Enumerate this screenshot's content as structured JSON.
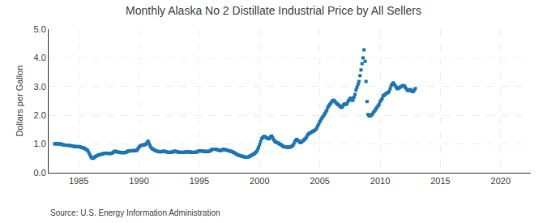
{
  "chart_data": {
    "type": "scatter",
    "title": "Monthly Alaska No 2 Distillate Industrial Price by All Sellers",
    "ylabel": "Dollars per Gallon",
    "annotations": [
      "Source: U.S. Energy Information Administration"
    ],
    "marker": "square",
    "grid": true,
    "xlim": [
      1982.5,
      2022.5
    ],
    "xticks": [
      1985,
      1990,
      1995,
      2000,
      2005,
      2010,
      2015,
      2020
    ],
    "ylim": [
      0.0,
      5.0
    ],
    "yticks": [
      {
        "value": 0.0,
        "label": "0.0"
      },
      {
        "value": 1.0,
        "label": "1.0"
      },
      {
        "value": 2.0,
        "label": "2.0"
      },
      {
        "value": 3.0,
        "label": "3.0"
      },
      {
        "value": 4.0,
        "label": "4.0"
      },
      {
        "value": 5.0,
        "label": "5.0"
      }
    ],
    "x": [
      1983.0,
      1983.083,
      1983.167,
      1983.25,
      1983.333,
      1983.417,
      1983.5,
      1983.583,
      1983.667,
      1983.75,
      1983.833,
      1983.917,
      1984.0,
      1984.083,
      1984.167,
      1984.25,
      1984.333,
      1984.417,
      1984.5,
      1984.583,
      1984.667,
      1984.75,
      1984.833,
      1984.917,
      1985.0,
      1985.083,
      1985.167,
      1985.25,
      1985.333,
      1985.417,
      1985.5,
      1985.583,
      1985.667,
      1985.75,
      1985.833,
      1985.917,
      1986.0,
      1986.083,
      1986.167,
      1986.25,
      1986.333,
      1986.417,
      1986.5,
      1986.583,
      1986.667,
      1986.75,
      1986.833,
      1986.917,
      1987.0,
      1987.083,
      1987.167,
      1987.25,
      1987.333,
      1987.417,
      1987.5,
      1987.583,
      1987.667,
      1987.75,
      1987.833,
      1987.917,
      1988.0,
      1988.083,
      1988.167,
      1988.25,
      1988.333,
      1988.417,
      1988.5,
      1988.583,
      1988.667,
      1988.75,
      1988.833,
      1988.917,
      1989.0,
      1989.083,
      1989.167,
      1989.25,
      1989.333,
      1989.417,
      1989.5,
      1989.583,
      1989.667,
      1989.75,
      1989.833,
      1989.917,
      1990.0,
      1990.083,
      1990.167,
      1990.25,
      1990.333,
      1990.417,
      1990.5,
      1990.583,
      1990.667,
      1990.75,
      1990.833,
      1990.917,
      1991.0,
      1991.083,
      1991.167,
      1991.25,
      1991.333,
      1991.417,
      1991.5,
      1991.583,
      1991.667,
      1991.75,
      1991.833,
      1991.917,
      1992.0,
      1992.083,
      1992.167,
      1992.25,
      1992.333,
      1992.417,
      1992.5,
      1992.583,
      1992.667,
      1992.75,
      1992.833,
      1992.917,
      1993.0,
      1993.083,
      1993.167,
      1993.25,
      1993.333,
      1993.417,
      1993.5,
      1993.583,
      1993.667,
      1993.75,
      1993.833,
      1993.917,
      1994.0,
      1994.083,
      1994.167,
      1994.25,
      1994.333,
      1994.417,
      1994.5,
      1994.583,
      1994.667,
      1994.75,
      1994.833,
      1994.917,
      1995.0,
      1995.083,
      1995.167,
      1995.25,
      1995.333,
      1995.417,
      1995.5,
      1995.583,
      1995.667,
      1995.75,
      1995.833,
      1995.917,
      1996.0,
      1996.083,
      1996.167,
      1996.25,
      1996.333,
      1996.417,
      1996.5,
      1996.583,
      1996.667,
      1996.75,
      1996.833,
      1996.917,
      1997.0,
      1997.083,
      1997.167,
      1997.25,
      1997.333,
      1997.417,
      1997.5,
      1997.583,
      1997.667,
      1997.75,
      1997.833,
      1997.917,
      1998.0,
      1998.083,
      1998.167,
      1998.25,
      1998.333,
      1998.417,
      1998.5,
      1998.583,
      1998.667,
      1998.75,
      1998.833,
      1998.917,
      1999.0,
      1999.083,
      1999.167,
      1999.25,
      1999.333,
      1999.417,
      1999.5,
      1999.583,
      1999.667,
      1999.75,
      1999.833,
      1999.917,
      2000.0,
      2000.083,
      2000.167,
      2000.25,
      2000.333,
      2000.417,
      2000.5,
      2000.583,
      2000.667,
      2000.75,
      2000.833,
      2000.917,
      2001.0,
      2001.083,
      2001.167,
      2001.25,
      2001.333,
      2001.417,
      2001.5,
      2001.583,
      2001.667,
      2001.75,
      2001.833,
      2001.917,
      2002.0,
      2002.083,
      2002.167,
      2002.25,
      2002.333,
      2002.417,
      2002.5,
      2002.583,
      2002.667,
      2002.75,
      2002.833,
      2002.917,
      2003.0,
      2003.083,
      2003.167,
      2003.25,
      2003.333,
      2003.417,
      2003.5,
      2003.583,
      2003.667,
      2003.75,
      2003.833,
      2003.917,
      2004.0,
      2004.083,
      2004.167,
      2004.25,
      2004.333,
      2004.417,
      2004.5,
      2004.583,
      2004.667,
      2004.75,
      2004.833,
      2004.917,
      2005.0,
      2005.083,
      2005.167,
      2005.25,
      2005.333,
      2005.417,
      2005.5,
      2005.583,
      2005.667,
      2005.75,
      2005.833,
      2005.917,
      2006.0,
      2006.083,
      2006.167,
      2006.25,
      2006.333,
      2006.417,
      2006.5,
      2006.583,
      2006.667,
      2006.75,
      2006.833,
      2006.917,
      2007.0,
      2007.083,
      2007.167,
      2007.25,
      2007.333,
      2007.417,
      2007.5,
      2007.583,
      2007.667,
      2007.75,
      2007.833,
      2007.917,
      2008.0,
      2008.083,
      2008.167,
      2008.25,
      2008.333,
      2008.417,
      2008.5,
      2008.583,
      2008.667,
      2008.75,
      2008.833,
      2008.917,
      2009.0,
      2009.083,
      2009.167,
      2009.25,
      2009.333,
      2009.417,
      2009.5,
      2009.583,
      2009.667,
      2009.75,
      2009.833,
      2009.917,
      2010.0,
      2010.083,
      2010.167,
      2010.25,
      2010.333,
      2010.417,
      2010.5,
      2010.583,
      2010.667,
      2010.75,
      2010.833,
      2010.917,
      2011.0,
      2011.083,
      2011.167,
      2011.25,
      2011.333,
      2011.417,
      2011.5,
      2011.583,
      2011.667,
      2011.75,
      2011.833,
      2011.917,
      2012.0,
      2012.083,
      2012.167,
      2012.25,
      2012.333,
      2012.417,
      2012.5,
      2012.583,
      2012.667,
      2012.75,
      2012.833,
      2012.917
    ],
    "values": [
      1.0,
      1.02,
      1.01,
      1.0,
      1.0,
      1.01,
      1.0,
      0.99,
      0.98,
      0.97,
      0.96,
      0.96,
      0.96,
      0.96,
      0.95,
      0.95,
      0.94,
      0.93,
      0.93,
      0.92,
      0.91,
      0.91,
      0.91,
      0.91,
      0.91,
      0.9,
      0.89,
      0.88,
      0.87,
      0.86,
      0.84,
      0.82,
      0.8,
      0.77,
      0.7,
      0.63,
      0.56,
      0.52,
      0.5,
      0.52,
      0.55,
      0.57,
      0.59,
      0.61,
      0.62,
      0.63,
      0.64,
      0.65,
      0.66,
      0.67,
      0.68,
      0.68,
      0.68,
      0.67,
      0.67,
      0.67,
      0.67,
      0.68,
      0.7,
      0.73,
      0.75,
      0.74,
      0.73,
      0.72,
      0.71,
      0.71,
      0.7,
      0.7,
      0.7,
      0.7,
      0.7,
      0.71,
      0.73,
      0.75,
      0.76,
      0.76,
      0.76,
      0.77,
      0.77,
      0.77,
      0.77,
      0.77,
      0.79,
      0.84,
      0.89,
      0.93,
      0.95,
      0.96,
      0.97,
      0.97,
      0.98,
      1.0,
      1.05,
      1.1,
      1.02,
      0.94,
      0.88,
      0.84,
      0.82,
      0.8,
      0.78,
      0.76,
      0.75,
      0.74,
      0.73,
      0.73,
      0.73,
      0.74,
      0.75,
      0.75,
      0.74,
      0.73,
      0.72,
      0.71,
      0.71,
      0.71,
      0.71,
      0.72,
      0.73,
      0.75,
      0.75,
      0.74,
      0.73,
      0.72,
      0.71,
      0.71,
      0.71,
      0.71,
      0.71,
      0.71,
      0.72,
      0.73,
      0.73,
      0.72,
      0.72,
      0.72,
      0.71,
      0.71,
      0.71,
      0.71,
      0.71,
      0.72,
      0.73,
      0.75,
      0.76,
      0.76,
      0.76,
      0.75,
      0.75,
      0.75,
      0.74,
      0.74,
      0.74,
      0.74,
      0.75,
      0.77,
      0.79,
      0.82,
      0.82,
      0.82,
      0.82,
      0.81,
      0.8,
      0.79,
      0.78,
      0.77,
      0.78,
      0.8,
      0.82,
      0.81,
      0.8,
      0.79,
      0.78,
      0.77,
      0.76,
      0.75,
      0.74,
      0.73,
      0.71,
      0.69,
      0.67,
      0.65,
      0.63,
      0.61,
      0.6,
      0.59,
      0.58,
      0.57,
      0.56,
      0.55,
      0.54,
      0.54,
      0.54,
      0.55,
      0.57,
      0.59,
      0.61,
      0.63,
      0.65,
      0.67,
      0.7,
      0.74,
      0.8,
      0.88,
      0.98,
      1.08,
      1.18,
      1.22,
      1.26,
      1.26,
      1.24,
      1.22,
      1.2,
      1.18,
      1.2,
      1.25,
      1.28,
      1.22,
      1.15,
      1.1,
      1.08,
      1.05,
      1.05,
      1.02,
      1.0,
      0.98,
      0.96,
      0.93,
      0.91,
      0.9,
      0.9,
      0.89,
      0.89,
      0.89,
      0.89,
      0.9,
      0.92,
      0.95,
      1.0,
      1.07,
      1.13,
      1.16,
      1.13,
      1.1,
      1.07,
      1.05,
      1.08,
      1.11,
      1.14,
      1.17,
      1.2,
      1.26,
      1.32,
      1.36,
      1.38,
      1.4,
      1.42,
      1.44,
      1.46,
      1.48,
      1.51,
      1.56,
      1.63,
      1.7,
      1.78,
      1.84,
      1.9,
      1.95,
      2.0,
      2.06,
      2.12,
      2.18,
      2.28,
      2.33,
      2.38,
      2.43,
      2.48,
      2.52,
      2.52,
      2.48,
      2.44,
      2.4,
      2.38,
      2.35,
      2.32,
      2.28,
      2.28,
      2.33,
      2.38,
      2.4,
      2.38,
      2.4,
      2.48,
      2.53,
      2.58,
      2.6,
      2.53,
      2.53,
      2.63,
      2.73,
      2.88,
      2.98,
      3.08,
      3.18,
      3.38,
      3.58,
      3.8,
      4.0,
      4.28,
      3.88,
      3.18,
      2.48,
      2.03,
      1.98,
      1.98,
      2.0,
      2.03,
      2.08,
      2.13,
      2.18,
      2.23,
      2.28,
      2.33,
      2.38,
      2.48,
      2.53,
      2.58,
      2.68,
      2.7,
      2.73,
      2.76,
      2.78,
      2.8,
      2.83,
      2.93,
      3.03,
      3.08,
      3.13,
      3.08,
      3.03,
      2.98,
      2.93,
      2.93,
      2.96,
      2.98,
      3.0,
      3.03,
      3.03,
      3.03,
      2.98,
      2.93,
      2.88,
      2.86,
      2.88,
      2.9,
      2.86,
      2.83,
      2.83,
      2.88,
      2.93
    ]
  }
}
